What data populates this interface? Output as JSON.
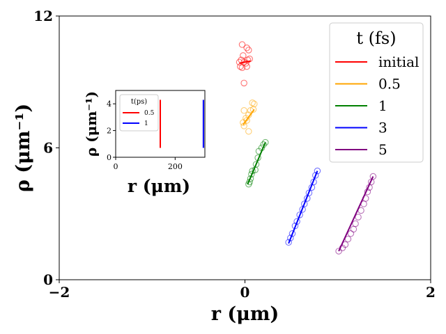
{
  "chart_data": [
    {
      "type": "scatter",
      "xlabel": "r (μm)",
      "ylabel": "ρ (μm⁻¹)",
      "xlim": [
        -2,
        2
      ],
      "ylim": [
        0,
        12
      ],
      "x_ticks": [
        "−2",
        "0",
        "2"
      ],
      "y_ticks": [
        "0",
        "6",
        "12"
      ],
      "x_tick_values": [
        -2,
        0,
        2
      ],
      "y_tick_values": [
        0,
        6,
        12
      ],
      "grid": false,
      "legend": {
        "title": "t (fs)",
        "placement": "top-right"
      },
      "series": [
        {
          "name": "initial",
          "color": "#ff0000",
          "line": [
            [
              -0.06,
              9.85
            ],
            [
              0.06,
              9.95
            ]
          ],
          "points": [
            [
              -0.03,
              10.7
            ],
            [
              0.02,
              10.55
            ],
            [
              0.04,
              10.45
            ],
            [
              -0.02,
              10.2
            ],
            [
              -0.04,
              10.0
            ],
            [
              0.03,
              10.0
            ],
            [
              0.05,
              10.05
            ],
            [
              -0.06,
              9.9
            ],
            [
              -0.01,
              9.9
            ],
            [
              0.01,
              9.85
            ],
            [
              -0.05,
              9.7
            ],
            [
              -0.03,
              9.65
            ],
            [
              0.02,
              9.7
            ],
            [
              -0.01,
              8.95
            ]
          ]
        },
        {
          "name": "0.5",
          "color": "#ffa500",
          "line": [
            [
              -0.02,
              7.05
            ],
            [
              0.1,
              7.75
            ]
          ],
          "points": [
            [
              0.08,
              8.05
            ],
            [
              0.1,
              8.0
            ],
            [
              0.06,
              7.7
            ],
            [
              0.09,
              7.75
            ],
            [
              -0.01,
              7.7
            ],
            [
              0.04,
              7.5
            ],
            [
              0.01,
              7.35
            ],
            [
              0.02,
              7.25
            ],
            [
              -0.02,
              7.15
            ],
            [
              -0.01,
              7.0
            ],
            [
              0.04,
              6.75
            ]
          ]
        },
        {
          "name": "1",
          "color": "#008000",
          "line": [
            [
              0.03,
              4.35
            ],
            [
              0.22,
              6.25
            ]
          ],
          "points": [
            [
              0.22,
              6.25
            ],
            [
              0.2,
              6.15
            ],
            [
              0.18,
              6.0
            ],
            [
              0.15,
              5.85
            ],
            [
              0.14,
              5.55
            ],
            [
              0.12,
              5.25
            ],
            [
              0.11,
              5.0
            ],
            [
              0.08,
              4.95
            ],
            [
              0.07,
              4.8
            ],
            [
              0.06,
              4.6
            ],
            [
              0.05,
              4.45
            ],
            [
              0.04,
              4.35
            ]
          ]
        },
        {
          "name": "3",
          "color": "#0000ff",
          "line": [
            [
              0.47,
              1.65
            ],
            [
              0.78,
              4.95
            ]
          ],
          "points": [
            [
              0.78,
              4.95
            ],
            [
              0.76,
              4.75
            ],
            [
              0.74,
              4.45
            ],
            [
              0.72,
              4.2
            ],
            [
              0.69,
              3.95
            ],
            [
              0.67,
              3.7
            ],
            [
              0.64,
              3.45
            ],
            [
              0.62,
              3.2
            ],
            [
              0.59,
              2.95
            ],
            [
              0.56,
              2.65
            ],
            [
              0.54,
              2.45
            ],
            [
              0.51,
              2.1
            ],
            [
              0.49,
              1.9
            ],
            [
              0.47,
              1.7
            ]
          ]
        },
        {
          "name": "5",
          "color": "#800080",
          "line": [
            [
              1.01,
              1.3
            ],
            [
              1.38,
              4.7
            ]
          ],
          "points": [
            [
              1.38,
              4.7
            ],
            [
              1.36,
              4.45
            ],
            [
              1.34,
              4.2
            ],
            [
              1.32,
              4.0
            ],
            [
              1.3,
              3.7
            ],
            [
              1.28,
              3.45
            ],
            [
              1.25,
              3.15
            ],
            [
              1.22,
              2.85
            ],
            [
              1.19,
              2.55
            ],
            [
              1.17,
              2.3
            ],
            [
              1.14,
              2.1
            ],
            [
              1.11,
              1.85
            ],
            [
              1.08,
              1.6
            ],
            [
              1.05,
              1.45
            ],
            [
              1.01,
              1.3
            ]
          ]
        }
      ]
    },
    {
      "type": "line",
      "xlabel": "r (μm)",
      "ylabel": "ρ (μm⁻¹)",
      "xlim": [
        0,
        300
      ],
      "ylim": [
        0,
        5
      ],
      "x_ticks": [
        "0",
        "200"
      ],
      "y_ticks": [
        "0",
        "2",
        "4"
      ],
      "x_tick_values": [
        0,
        200
      ],
      "y_tick_values": [
        0,
        2,
        4
      ],
      "grid": false,
      "legend": {
        "title": "t(ps)",
        "placement": "top-left"
      },
      "series": [
        {
          "name": "0.5",
          "color": "#ff0000",
          "x": [
            150,
            150
          ],
          "y": [
            0.7,
            4.3
          ]
        },
        {
          "name": "1",
          "color": "#0000ff",
          "x": [
            295,
            295
          ],
          "y": [
            0.7,
            4.3
          ]
        }
      ]
    }
  ]
}
